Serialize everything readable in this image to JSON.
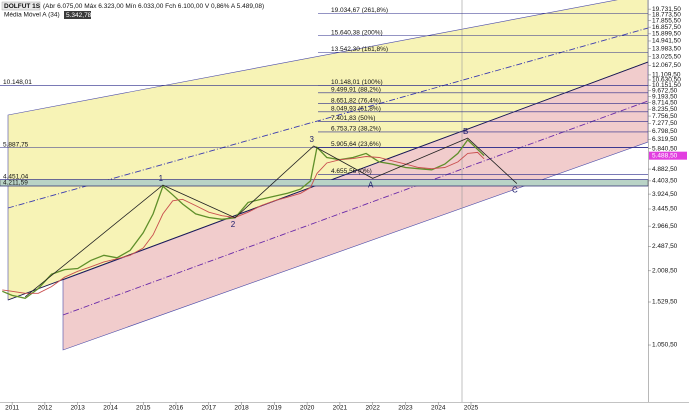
{
  "chart_data": {
    "type": "line",
    "title": "DOLFUT 1S",
    "subtitle": "(Abr 6.075,00 Máx 6.323,00 Mín 6.033,00 Fch 6.100,00 V 0,86% A 5.489,08)",
    "log_scale": true,
    "xlim": [
      2010.63,
      2030.4
    ],
    "ylim": [
      650,
      21000
    ],
    "xticks": [
      2011,
      2012,
      2013,
      2014,
      2015,
      2016,
      2017,
      2018,
      2019,
      2020,
      2021,
      2022,
      2023,
      2024,
      2025
    ],
    "yticks": [
      {
        "value": 19731.5,
        "label": "19.731,50"
      },
      {
        "value": 18773.5,
        "label": "18.773,50"
      },
      {
        "value": 17855.5,
        "label": "17.855,50"
      },
      {
        "value": 16857.5,
        "label": "16.857,50"
      },
      {
        "value": 15899.5,
        "label": "15.899,50"
      },
      {
        "value": 14941.5,
        "label": "14.941,50"
      },
      {
        "value": 13983.5,
        "label": "13.983,50"
      },
      {
        "value": 13025.5,
        "label": "13.025,50"
      },
      {
        "value": 12067.5,
        "label": "12.067,50"
      },
      {
        "value": 11109.5,
        "label": "11.109,50"
      },
      {
        "value": 10630.5,
        "label": "10.630,50"
      },
      {
        "value": 10151.5,
        "label": "10.151,50"
      },
      {
        "value": 9672.5,
        "label": "9.672,50"
      },
      {
        "value": 9193.5,
        "label": "9.193,50"
      },
      {
        "value": 8714.5,
        "label": "8.714,50"
      },
      {
        "value": 8235.5,
        "label": "8.235,50"
      },
      {
        "value": 7756.5,
        "label": "7.756,50"
      },
      {
        "value": 7277.5,
        "label": "7.277,50"
      },
      {
        "value": 6798.5,
        "label": "6.798,50"
      },
      {
        "value": 6319.5,
        "label": "6.319,50"
      },
      {
        "value": 5840.5,
        "label": "5.840,50"
      },
      {
        "value": 4882.5,
        "label": "4.882,50"
      },
      {
        "value": 4403.5,
        "label": "4.403,50"
      },
      {
        "value": 3924.5,
        "label": "3.924,50"
      },
      {
        "value": 3445.5,
        "label": "3.445,50"
      },
      {
        "value": 2966.5,
        "label": "2.966,50"
      },
      {
        "value": 2487.5,
        "label": "2.487,50"
      },
      {
        "value": 2008.5,
        "label": "2.008,50"
      },
      {
        "value": 1529.5,
        "label": "1.529,50"
      },
      {
        "value": 1050.5,
        "label": "1.050,50"
      }
    ],
    "current_price": {
      "value": 5488.5,
      "label": "5.488,50"
    },
    "series": [
      {
        "name": "DOLFUT 1S",
        "color": "#5f8f2a",
        "x": [
          2010.7,
          2011.0,
          2011.4,
          2011.8,
          2012.2,
          2012.6,
          2013.0,
          2013.4,
          2013.8,
          2014.2,
          2014.6,
          2015.0,
          2015.3,
          2015.6,
          2015.9,
          2016.2,
          2016.6,
          2017.0,
          2017.4,
          2017.8,
          2018.2,
          2018.6,
          2019.0,
          2019.4,
          2019.8,
          2020.1,
          2020.3,
          2020.6,
          2021.0,
          2021.4,
          2021.8,
          2022.2,
          2022.6,
          2023.0,
          2023.4,
          2023.8,
          2024.2,
          2024.6,
          2024.9,
          2025.2,
          2025.4
        ],
        "values": [
          1680,
          1620,
          1580,
          1720,
          1950,
          2030,
          2050,
          2200,
          2300,
          2250,
          2400,
          2800,
          3300,
          4200,
          3900,
          3600,
          3300,
          3200,
          3150,
          3190,
          3650,
          3750,
          3850,
          3950,
          4100,
          4400,
          5900,
          5400,
          5300,
          5400,
          5600,
          5200,
          5100,
          4950,
          4900,
          4850,
          5100,
          5600,
          6300,
          5800,
          5490
        ]
      },
      {
        "name": "Média Móvel A (34)",
        "color": "#c94f4f",
        "x": [
          2010.7,
          2011.0,
          2011.4,
          2011.8,
          2012.2,
          2012.6,
          2013.0,
          2013.4,
          2013.8,
          2014.2,
          2014.6,
          2015.0,
          2015.3,
          2015.6,
          2015.9,
          2016.2,
          2016.6,
          2017.0,
          2017.4,
          2017.8,
          2018.2,
          2018.6,
          2019.0,
          2019.4,
          2019.8,
          2020.1,
          2020.3,
          2020.6,
          2021.0,
          2021.4,
          2021.8,
          2022.2,
          2022.6,
          2023.0,
          2023.4,
          2023.8,
          2024.2,
          2024.6,
          2024.9,
          2025.2,
          2025.4
        ],
        "values": [
          1700,
          1680,
          1650,
          1650,
          1750,
          1900,
          2000,
          2080,
          2170,
          2230,
          2300,
          2450,
          2750,
          3300,
          3700,
          3750,
          3550,
          3350,
          3250,
          3200,
          3350,
          3550,
          3700,
          3820,
          3950,
          4150,
          4700,
          5150,
          5300,
          5350,
          5450,
          5400,
          5250,
          5100,
          4950,
          4900,
          4950,
          5200,
          5600,
          5650,
          5342.78
        ],
        "last_value": {
          "value": 5342.78,
          "label": "5.342,78"
        }
      }
    ],
    "fib_levels": [
      {
        "value": 19034.67,
        "label": "19.034,67 (261,8%)"
      },
      {
        "value": 15640.38,
        "label": "15.640,38 (200%)"
      },
      {
        "value": 13542.3,
        "label": "13.542,30 (161,8%)"
      },
      {
        "value": 10148.01,
        "label": "10.148,01 (100%)"
      },
      {
        "value": 9499.91,
        "label": "9.499,91 (88,2%)"
      },
      {
        "value": 8651.82,
        "label": "8.651,82 (76,4%)"
      },
      {
        "value": 8049.93,
        "label": "8.049,93 (61,8%)"
      },
      {
        "value": 7401.83,
        "label": "7.401,83 (50%)"
      },
      {
        "value": 6753.73,
        "label": "6.753,73 (38,2%)"
      },
      {
        "value": 5905.64,
        "label": "5.905,64 (23,6%)"
      },
      {
        "value": 4655.56,
        "label": "4.655,56 (0%)"
      }
    ],
    "price_lines": [
      {
        "value": 10148.01,
        "label": "10.148,01"
      },
      {
        "value": 5887.75,
        "label": "5.887,75"
      },
      {
        "value": 4451.04,
        "label": "4.451,04"
      },
      {
        "value": 4211.59,
        "label": "4.211,59"
      }
    ],
    "waves": {
      "labels": [
        null,
        "1",
        "2",
        "3",
        "A",
        "B",
        "C"
      ],
      "x": [
        2011.4,
        2015.6,
        2017.8,
        2020.2,
        2022.0,
        2024.9,
        2026.4
      ],
      "values": [
        1600,
        4246,
        3190,
        5970,
        4500,
        6400,
        4300
      ]
    }
  }
}
